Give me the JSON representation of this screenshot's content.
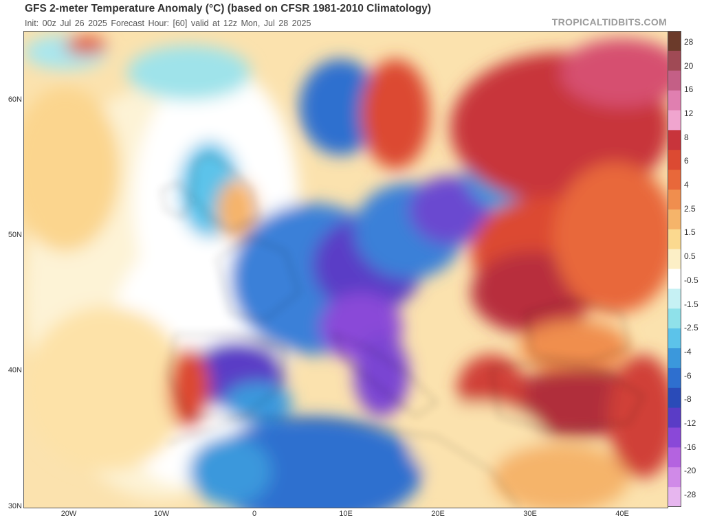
{
  "header": {
    "title": "GFS 2-meter Temperature Anomaly (°C) (based on CFSR 1981-2010 Climatology)",
    "subtitle": "Init: 00z Jul 26 2025   Forecast Hour: [60]   valid at 12z Mon, Jul 28 2025",
    "brand": "TROPICALTIDBITS.COM"
  },
  "map": {
    "lat_labels": [
      "60N",
      "50N",
      "40N",
      "30N"
    ],
    "lon_labels": [
      "20W",
      "10W",
      "0",
      "10E",
      "20E",
      "30E",
      "40E"
    ]
  },
  "colorbar": {
    "labels": [
      "28",
      "20",
      "16",
      "12",
      "8",
      "6",
      "4",
      "2.5",
      "1.5",
      "0.5",
      "-0.5",
      "-1.5",
      "-2.5",
      "-4",
      "-6",
      "-8",
      "-12",
      "-16",
      "-20",
      "-28"
    ],
    "colors": [
      "#6b3a2a",
      "#a04a55",
      "#c45f86",
      "#e07fb0",
      "#f0a5cf",
      "#c8343b",
      "#dc4a32",
      "#e8683a",
      "#f08e4e",
      "#f5b46a",
      "#fbd98f",
      "#fcefc6",
      "#ffffff",
      "#c6f1f4",
      "#8fe1ea",
      "#5cc3ea",
      "#3b98dc",
      "#2e6fcf",
      "#2a4bb8",
      "#5a3cc6",
      "#8a48d8",
      "#b463e0",
      "#d08ae8",
      "#e7b6ef"
    ]
  }
}
